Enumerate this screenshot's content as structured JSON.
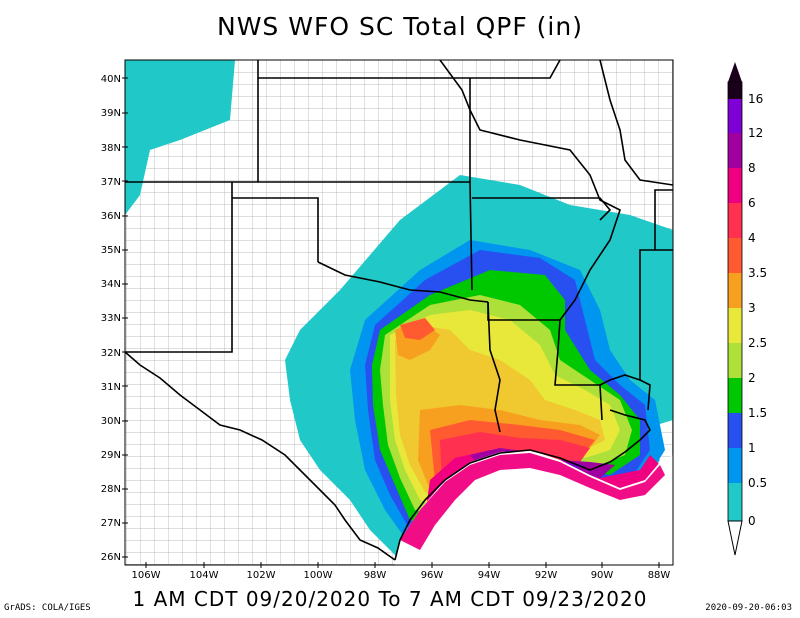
{
  "title": "NWS WFO SC Total QPF (in)",
  "valid_period": "1 AM CDT 09/20/2020 To 7 AM CDT 09/23/2020",
  "credit": "GrADS: COLA/IGES",
  "timestamp": "2020-09-20-06:03",
  "map": {
    "lat_labels": [
      "40N",
      "39N",
      "38N",
      "37N",
      "36N",
      "35N",
      "34N",
      "33N",
      "32N",
      "31N",
      "30N",
      "29N",
      "28N",
      "27N",
      "26N"
    ],
    "lon_labels": [
      "106W",
      "104W",
      "102W",
      "100W",
      "98W",
      "96W",
      "94W",
      "92W",
      "90W",
      "88W"
    ],
    "extent": {
      "lon_min": -107,
      "lon_max": -87.5,
      "lat_min": 26,
      "lat_max": 40.5
    }
  },
  "legend": {
    "labels": [
      "16",
      "12",
      "8",
      "6",
      "4",
      "3.5",
      "3",
      "2.5",
      "2",
      "1.5",
      "1",
      "0.5",
      "0"
    ],
    "colors": [
      "#1a001a",
      "#7f00d6",
      "#9f009f",
      "#f00080",
      "#ff3050",
      "#ff5a30",
      "#f7a020",
      "#f0c830",
      "#e8e83a",
      "#aee03a",
      "#00c800",
      "#2850f0",
      "#0096f0",
      "#20c8c8"
    ]
  },
  "colors": {
    "land": "#ffffff",
    "county_lines": "#a0a0a0",
    "state_lines": "#000000",
    "water": "#ffffff"
  }
}
